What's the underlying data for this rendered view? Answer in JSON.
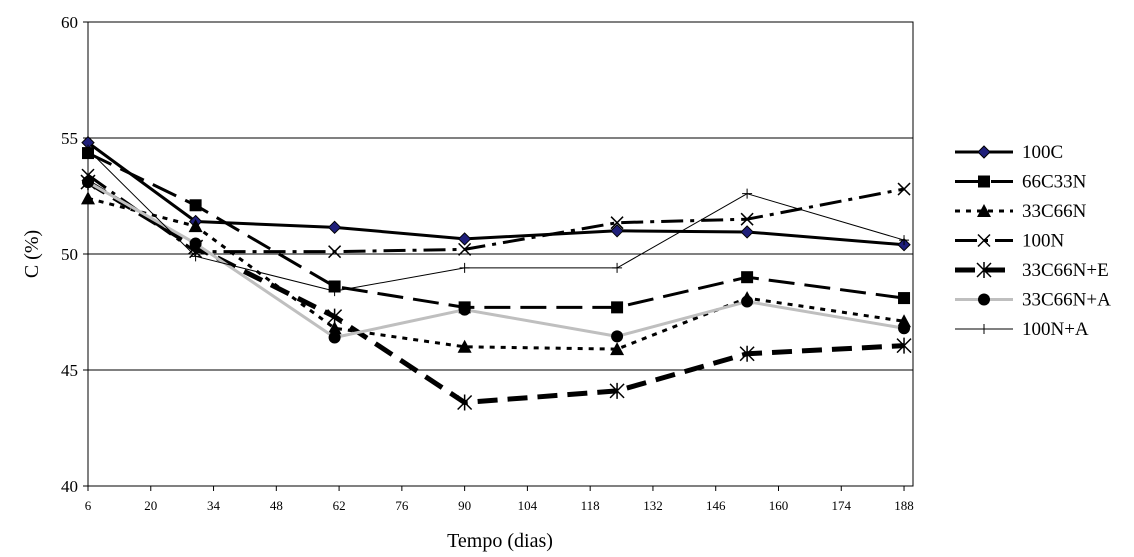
{
  "chart_data": {
    "type": "line",
    "title": "",
    "xlabel": "Tempo (dias)",
    "ylabel": "C (%)",
    "xlim": [
      6,
      190
    ],
    "ylim": [
      40,
      60
    ],
    "x_ticks": [
      6,
      20,
      34,
      48,
      62,
      76,
      90,
      104,
      118,
      132,
      146,
      160,
      174,
      188
    ],
    "y_ticks": [
      40,
      45,
      50,
      55,
      60
    ],
    "grid": "horizontal",
    "legend_position": "right",
    "series": [
      {
        "name": "100C",
        "x": [
          6,
          30,
          61,
          90,
          124,
          153,
          188
        ],
        "y": [
          54.8,
          51.4,
          51.15,
          50.65,
          51.0,
          50.95,
          50.4
        ],
        "color": "#000000",
        "line_width": 3,
        "dash": "",
        "marker": "diamond",
        "marker_fill": "#1f1f7a"
      },
      {
        "name": "66C33N",
        "x": [
          6,
          30,
          61,
          90,
          124,
          153,
          188
        ],
        "y": [
          54.35,
          52.1,
          48.6,
          47.7,
          47.7,
          49.0,
          48.1
        ],
        "color": "#000000",
        "line_width": 3,
        "dash": "26,10",
        "marker": "square",
        "marker_fill": "#000000"
      },
      {
        "name": "33C66N",
        "x": [
          6,
          30,
          61,
          90,
          124,
          153,
          188
        ],
        "y": [
          52.4,
          51.2,
          46.8,
          46.0,
          45.9,
          48.1,
          47.1
        ],
        "color": "#000000",
        "line_width": 3,
        "dash": "5,6",
        "marker": "triangle",
        "marker_fill": "#000000"
      },
      {
        "name": "100N",
        "x": [
          6,
          30,
          61,
          90,
          124,
          153,
          188
        ],
        "y": [
          53.4,
          50.1,
          50.1,
          50.2,
          51.35,
          51.5,
          52.8
        ],
        "color": "#000000",
        "line_width": 3,
        "dash": "22,7,4,7",
        "marker": "x",
        "marker_fill": "#000000"
      },
      {
        "name": "33C66N+E",
        "x": [
          6,
          30,
          61,
          90,
          124,
          153,
          188
        ],
        "y": [
          53.1,
          50.3,
          47.3,
          43.6,
          44.1,
          45.7,
          46.05
        ],
        "color": "#000000",
        "line_width": 5,
        "dash": "20,10",
        "marker": "asterisk",
        "marker_fill": "#000000"
      },
      {
        "name": "33C66N+A",
        "x": [
          6,
          30,
          61,
          90,
          124,
          153,
          188
        ],
        "y": [
          53.1,
          50.45,
          46.4,
          47.6,
          46.45,
          47.95,
          46.8
        ],
        "color": "#bfbfbf",
        "line_width": 3,
        "dash": "",
        "marker": "circle",
        "marker_fill": "#000000"
      },
      {
        "name": "100N+A",
        "x": [
          6,
          30,
          61,
          90,
          124,
          153,
          188
        ],
        "y": [
          54.5,
          49.9,
          48.4,
          49.4,
          49.4,
          52.6,
          50.6
        ],
        "color": "#000000",
        "line_width": 1,
        "dash": "",
        "marker": "plus",
        "marker_fill": "#000000"
      }
    ]
  }
}
